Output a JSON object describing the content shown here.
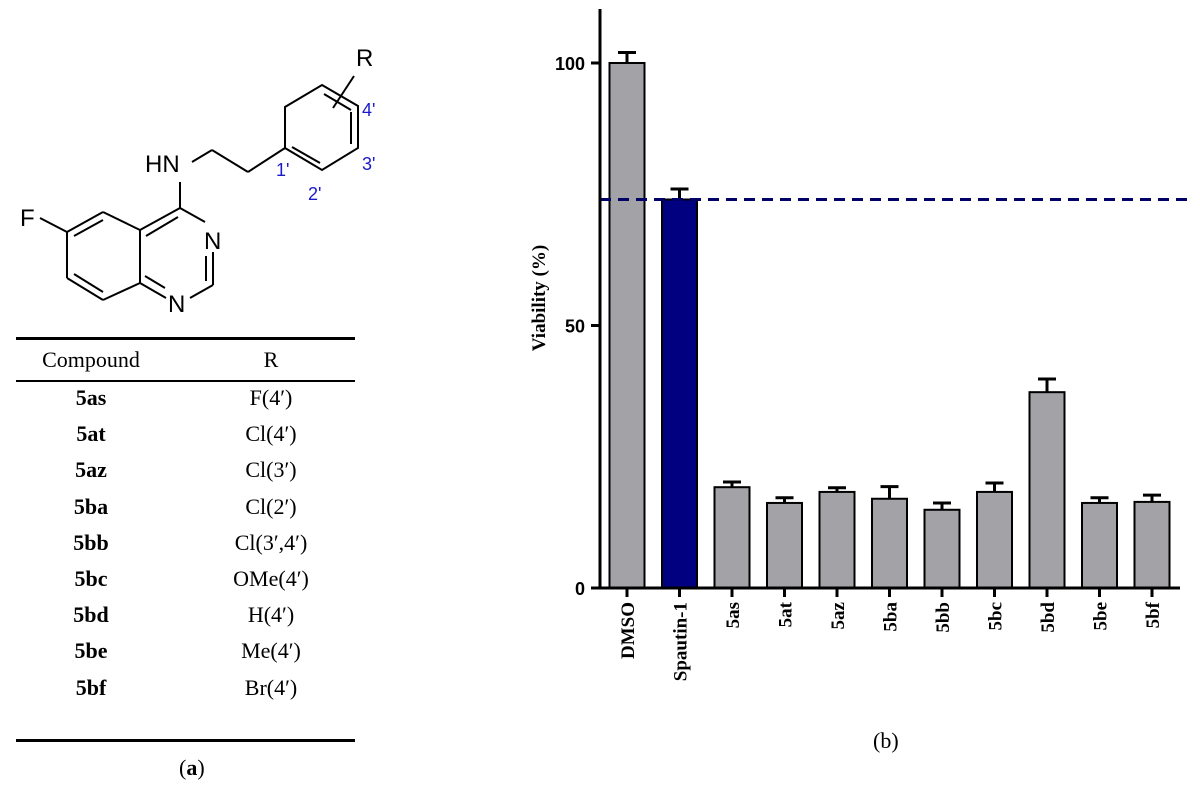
{
  "structure": {
    "substituent": "R",
    "atoms": {
      "hn": "HN",
      "f": "F",
      "n3": "N",
      "n1": "N"
    },
    "positions": [
      "1'",
      "2'",
      "3'",
      "4'"
    ]
  },
  "table": {
    "headers": [
      "Compound",
      "R"
    ],
    "rows": [
      {
        "compound": "5as",
        "r": "F(4′)"
      },
      {
        "compound": "5at",
        "r": "Cl(4′)"
      },
      {
        "compound": "5az",
        "r": "Cl(3′)"
      },
      {
        "compound": "5ba",
        "r": "Cl(2′)"
      },
      {
        "compound": "5bb",
        "r": "Cl(3′,4′)"
      },
      {
        "compound": "5bc",
        "r": "OMe(4′)"
      },
      {
        "compound": "5bd",
        "r": "H(4′)"
      },
      {
        "compound": "5be",
        "r": "Me(4′)"
      },
      {
        "compound": "5bf",
        "r": "Br(4′)"
      }
    ]
  },
  "captions": {
    "a_open": "(",
    "a_letter": "a",
    "a_close": ")",
    "b": "(b)"
  },
  "colors": {
    "bar_default": "#a3a3a7",
    "bar_highlight": "#000080",
    "reference_line": "#000066",
    "label_blue": "#1a1acc"
  },
  "chart_data": {
    "type": "bar",
    "title": "",
    "xlabel": "",
    "ylabel": "Viability (%)",
    "ylim": [
      0,
      110
    ],
    "yticks": [
      0,
      50,
      100
    ],
    "categories": [
      "DMSO",
      "Spautin-1",
      "5as",
      "5at",
      "5az",
      "5ba",
      "5bb",
      "5bc",
      "5bd",
      "5be",
      "5bf"
    ],
    "values": [
      100,
      74,
      19.2,
      16.2,
      18.3,
      17.0,
      14.9,
      18.3,
      37.3,
      16.2,
      16.4
    ],
    "errors": [
      2,
      2,
      1.0,
      1.0,
      0.8,
      2.3,
      1.3,
      1.7,
      2.5,
      1.0,
      1.3
    ],
    "highlight_category": "Spautin-1",
    "reference_line": {
      "value": 74,
      "style": "dashed"
    },
    "grid": false
  }
}
